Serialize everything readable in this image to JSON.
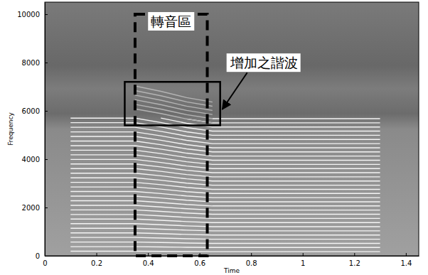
{
  "chart_data": {
    "type": "line",
    "x_label": "Time",
    "y_label": "Frequency",
    "xlim": [
      0,
      1.45
    ],
    "ylim": [
      0,
      10500
    ],
    "xticks": [
      0,
      0.2,
      0.4,
      0.6,
      0.8,
      1,
      1.2,
      1.4
    ],
    "yticks": [
      0,
      2000,
      4000,
      6000,
      8000,
      10000
    ],
    "x": [
      0.1,
      0.35,
      0.45,
      0.55,
      0.65,
      1.3
    ],
    "series": [
      {
        "color": "#f4f4f4",
        "values": [
          190,
          190,
          184,
          177,
          172,
          172
        ]
      },
      {
        "color": "#f4f4f4",
        "values": [
          380,
          380,
          368,
          354,
          344,
          344
        ]
      },
      {
        "color": "#f4f4f4",
        "values": [
          570,
          570,
          552,
          531,
          516,
          516
        ]
      },
      {
        "color": "#f4f4f4",
        "values": [
          760,
          760,
          736,
          708,
          688,
          688
        ]
      },
      {
        "color": "#f4f4f4",
        "values": [
          950,
          950,
          920,
          885,
          860,
          860
        ]
      },
      {
        "color": "#f4f4f4",
        "values": [
          1140,
          1140,
          1104,
          1062,
          1032,
          1032
        ]
      },
      {
        "color": "#f4f4f4",
        "values": [
          1330,
          1330,
          1288,
          1239,
          1204,
          1204
        ]
      },
      {
        "color": "#f4f4f4",
        "values": [
          1520,
          1520,
          1472,
          1416,
          1376,
          1376
        ]
      },
      {
        "color": "#f4f4f4",
        "values": [
          1710,
          1710,
          1656,
          1593,
          1548,
          1548
        ]
      },
      {
        "color": "#f4f4f4",
        "values": [
          1900,
          1900,
          1840,
          1770,
          1720,
          1720
        ]
      },
      {
        "color": "#f4f4f4",
        "values": [
          2090,
          2090,
          2024,
          1947,
          1892,
          1892
        ]
      },
      {
        "color": "#f4f4f4",
        "values": [
          2280,
          2280,
          2208,
          2124,
          2064,
          2064
        ]
      },
      {
        "color": "#f4f4f4",
        "values": [
          2470,
          2470,
          2392,
          2301,
          2236,
          2236
        ]
      },
      {
        "color": "#f4f4f4",
        "values": [
          2660,
          2660,
          2576,
          2478,
          2408,
          2408
        ]
      },
      {
        "color": "#f4f4f4",
        "values": [
          2850,
          2850,
          2760,
          2655,
          2580,
          2580
        ]
      },
      {
        "color": "#f4f4f4",
        "values": [
          3040,
          3040,
          2944,
          2832,
          2752,
          2752
        ]
      },
      {
        "color": "#f4f4f4",
        "values": [
          3230,
          3230,
          3128,
          3009,
          2924,
          2924
        ]
      },
      {
        "color": "#f4f4f4",
        "values": [
          3420,
          3420,
          3312,
          3186,
          3096,
          3096
        ]
      },
      {
        "color": "#f4f4f4",
        "values": [
          3610,
          3610,
          3496,
          3363,
          3268,
          3268
        ]
      },
      {
        "color": "#f4f4f4",
        "values": [
          3800,
          3800,
          3680,
          3540,
          3440,
          3440
        ]
      },
      {
        "color": "#f4f4f4",
        "values": [
          3990,
          3990,
          3864,
          3717,
          3612,
          3612
        ]
      },
      {
        "color": "#f4f4f4",
        "values": [
          4180,
          4180,
          4048,
          3894,
          3784,
          3784
        ]
      },
      {
        "color": "#f4f4f4",
        "values": [
          4370,
          4370,
          4232,
          4071,
          3956,
          3956
        ]
      },
      {
        "color": "#f4f4f4",
        "values": [
          4560,
          4560,
          4416,
          4248,
          4128,
          4128
        ]
      },
      {
        "color": "#f4f4f4",
        "values": [
          4750,
          4750,
          4600,
          4425,
          4300,
          4300
        ]
      },
      {
        "color": "#f4f4f4",
        "values": [
          4940,
          4940,
          4784,
          4602,
          4472,
          4472
        ]
      },
      {
        "color": "#f4f4f4",
        "values": [
          5130,
          5130,
          4968,
          4779,
          4644,
          4644
        ]
      },
      {
        "color": "#f4f4f4",
        "values": [
          5320,
          5320,
          5152,
          4956,
          4816,
          4816
        ]
      },
      {
        "color": "#f4f4f4",
        "values": [
          5510,
          5510,
          5336,
          5133,
          4988,
          4988
        ]
      },
      {
        "color": "#f4f4f4",
        "values": [
          5700,
          5700,
          5520,
          5310,
          5160,
          5160
        ]
      },
      {
        "color": "#f4f4f4",
        "values": [
          null,
          null,
          5704,
          5487,
          5332,
          5332
        ]
      },
      {
        "color": "#f4f4f4",
        "values": [
          null,
          null,
          null,
          5664,
          5504,
          5504
        ]
      },
      {
        "color": "#f4f4f4",
        "values": [
          null,
          null,
          null,
          null,
          5676,
          5676
        ]
      },
      {
        "color": "#b4b4b4",
        "values": [
          null,
          6080,
          5888,
          5664,
          5504,
          null
        ]
      },
      {
        "color": "#b4b4b4",
        "values": [
          null,
          6270,
          6072,
          5841,
          5676,
          null
        ]
      },
      {
        "color": "#b4b4b4",
        "values": [
          null,
          6460,
          6256,
          6018,
          5848,
          null
        ]
      },
      {
        "color": "#b4b4b4",
        "values": [
          null,
          6650,
          6440,
          6195,
          6020,
          null
        ]
      },
      {
        "color": "#b4b4b4",
        "values": [
          null,
          6840,
          6624,
          6372,
          6192,
          null
        ]
      },
      {
        "color": "#b4b4b4",
        "values": [
          null,
          7030,
          6808,
          6549,
          6364,
          null
        ]
      }
    ],
    "annotations": [
      {
        "text": "轉音區",
        "xlim": [
          0.35,
          0.63
        ],
        "ylim": [
          0,
          10000
        ],
        "line_style": "dashed"
      },
      {
        "text": "增加之諧波",
        "xlim": [
          0.31,
          0.68
        ],
        "ylim": [
          5400,
          7200
        ],
        "line_style": "solid"
      }
    ]
  }
}
